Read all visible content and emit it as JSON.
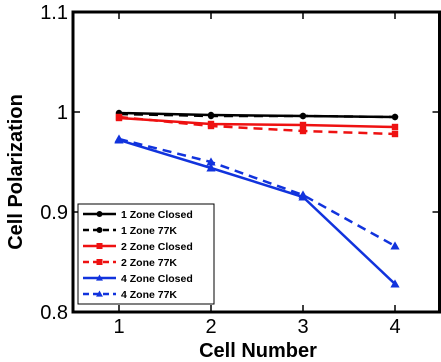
{
  "chart_data": {
    "type": "line",
    "title": "",
    "xlabel": "Cell Number",
    "ylabel": "Cell Polarization",
    "xlim": [
      0.5,
      4.5
    ],
    "ylim": [
      0.8,
      1.1
    ],
    "x_ticks": [
      1,
      2,
      3,
      4
    ],
    "y_ticks": [
      0.8,
      0.9,
      1,
      1.1
    ],
    "x_tick_labels": [
      "1",
      "2",
      "3",
      "4"
    ],
    "y_tick_labels": [
      "0.8",
      "0.9",
      "1",
      "1.1"
    ],
    "grid": false,
    "legend_position": "bottom-left",
    "x": [
      1,
      2,
      3,
      4
    ],
    "series": [
      {
        "name": "1 Zone Closed",
        "values": [
          0.999,
          0.997,
          0.996,
          0.995
        ],
        "color": "#000000",
        "dashed": false,
        "marker": "circle"
      },
      {
        "name": "1 Zone 77K",
        "values": [
          0.998,
          0.996,
          0.996,
          0.995
        ],
        "color": "#000000",
        "dashed": true,
        "marker": "circle"
      },
      {
        "name": "2 Zone Closed",
        "values": [
          0.994,
          0.988,
          0.987,
          0.985
        ],
        "color": "#ee1111",
        "dashed": false,
        "marker": "square"
      },
      {
        "name": "2 Zone 77K",
        "values": [
          0.995,
          0.986,
          0.981,
          0.978
        ],
        "color": "#ee1111",
        "dashed": true,
        "marker": "square"
      },
      {
        "name": "4 Zone Closed",
        "values": [
          0.972,
          0.944,
          0.915,
          0.828
        ],
        "color": "#1133dd",
        "dashed": false,
        "marker": "triangle"
      },
      {
        "name": "4 Zone 77K",
        "values": [
          0.973,
          0.95,
          0.917,
          0.866
        ],
        "color": "#1133dd",
        "dashed": true,
        "marker": "triangle"
      }
    ]
  }
}
